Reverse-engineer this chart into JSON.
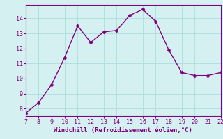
{
  "x": [
    7,
    8,
    9,
    10,
    11,
    12,
    13,
    14,
    15,
    16,
    17,
    18,
    19,
    20,
    21,
    22
  ],
  "y": [
    7.7,
    8.4,
    9.6,
    11.4,
    13.5,
    12.4,
    13.1,
    13.2,
    14.2,
    14.6,
    13.8,
    11.9,
    10.4,
    10.2,
    10.2,
    10.4
  ],
  "xlim": [
    7,
    22
  ],
  "ylim": [
    7.5,
    14.9
  ],
  "xticks": [
    7,
    8,
    9,
    10,
    11,
    12,
    13,
    14,
    15,
    16,
    17,
    18,
    19,
    20,
    21,
    22
  ],
  "yticks": [
    8,
    9,
    10,
    11,
    12,
    13,
    14
  ],
  "xlabel": "Windchill (Refroidissement éolien,°C)",
  "line_color": "#800080",
  "marker": "D",
  "marker_size": 2.5,
  "bg_color": "#d5f0f0",
  "grid_color": "#aadddd",
  "line_width": 1.0,
  "axis_label_fontsize": 6.5,
  "tick_fontsize": 6.0
}
